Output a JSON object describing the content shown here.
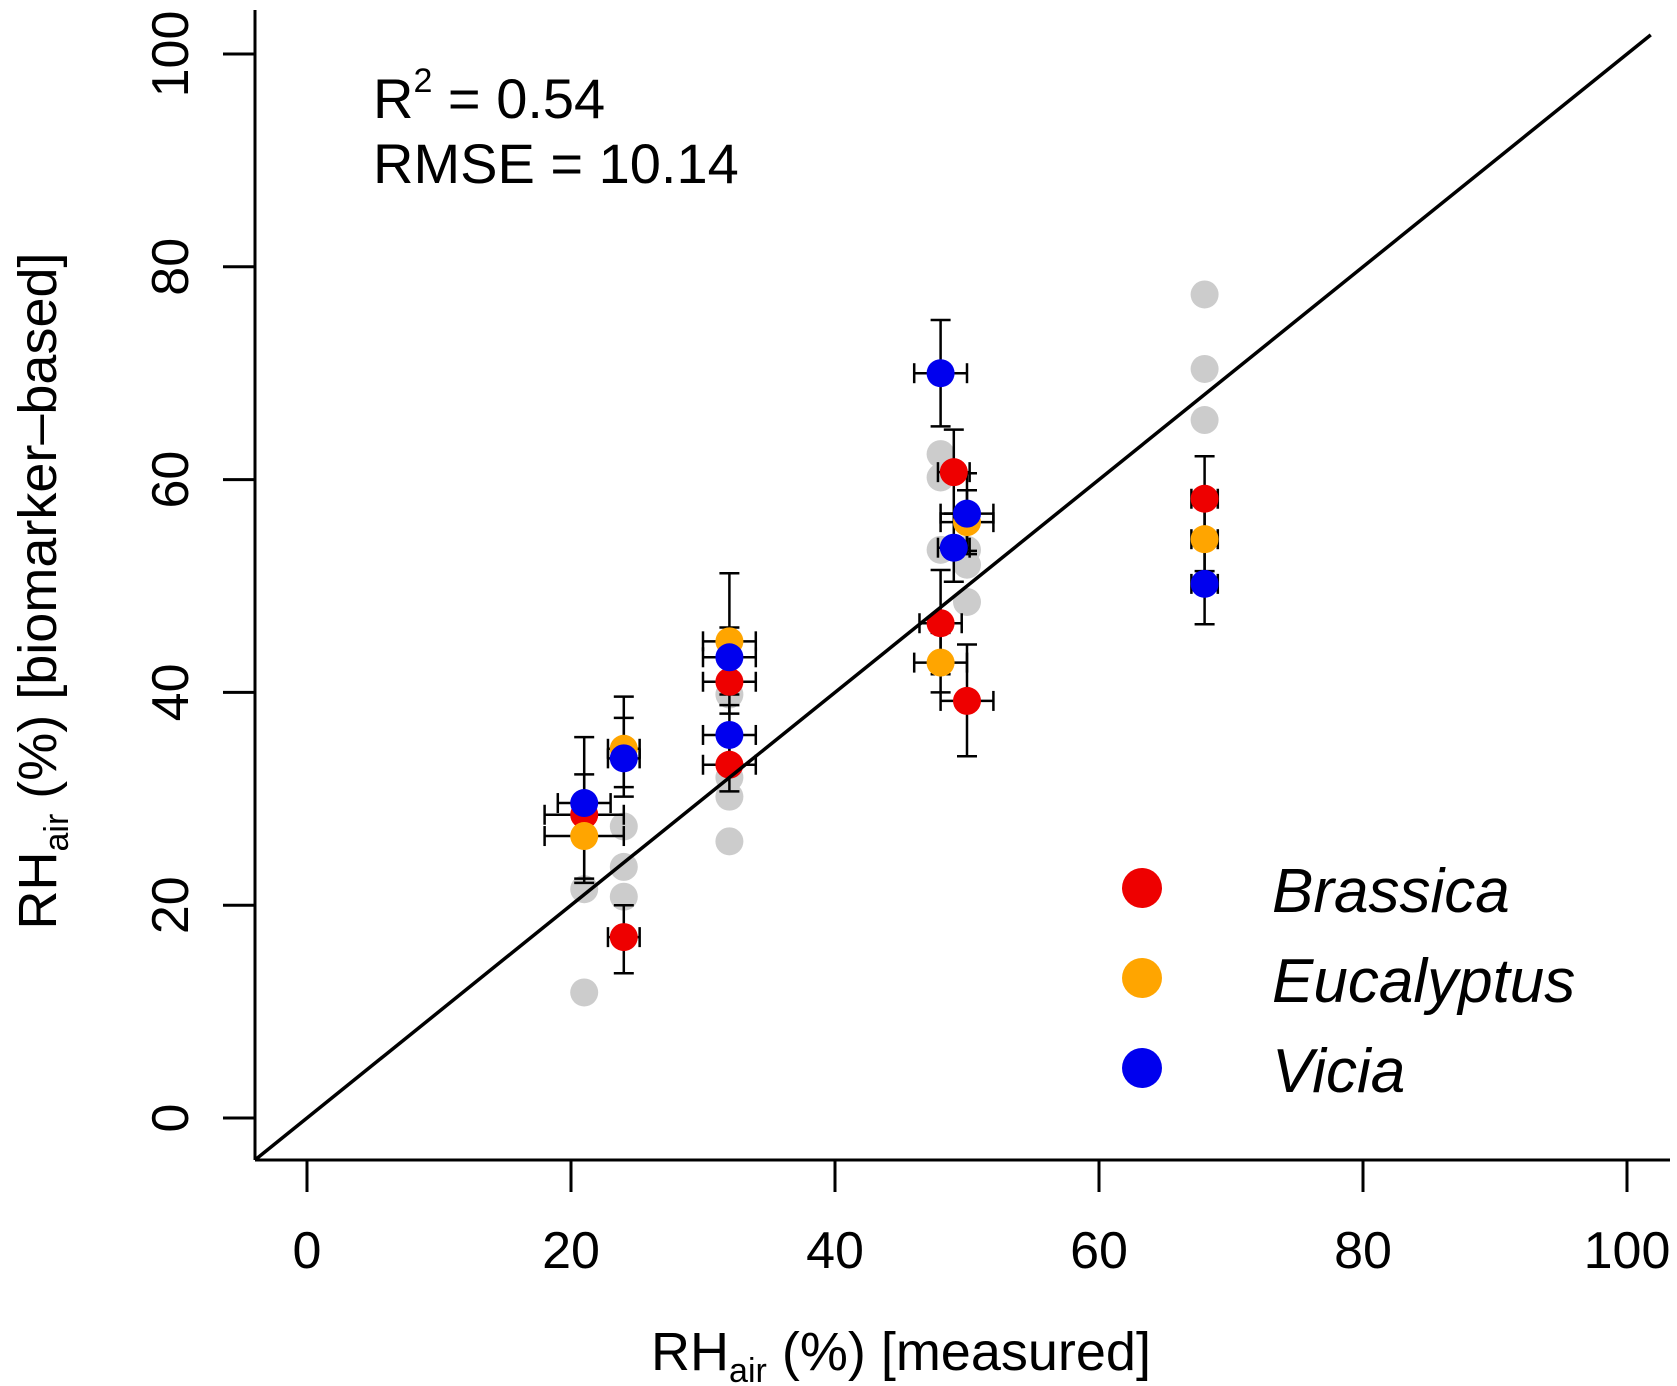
{
  "chart_data": {
    "type": "scatter",
    "xlabel_main": "RH",
    "xlabel_sub": "air",
    "xlabel_rest": " (%) [measured]",
    "ylabel_main": "RH",
    "ylabel_sub": "air",
    "ylabel_rest": " (%) [biomarker–based]",
    "xlim": [
      0,
      100
    ],
    "ylim": [
      0,
      100
    ],
    "xticks": [
      0,
      20,
      40,
      60,
      80,
      100
    ],
    "yticks": [
      0,
      20,
      40,
      60,
      80,
      100
    ],
    "xtick_labels": [
      "0",
      "20",
      "40",
      "60",
      "80",
      "100"
    ],
    "ytick_labels": [
      "0",
      "20",
      "40",
      "60",
      "80",
      "100"
    ],
    "grid": false,
    "identity_line": true,
    "annotations": {
      "r2_prefix": "R",
      "r2_sup": "2",
      "r2_value": " = 0.54",
      "rmse": "RMSE = 10.14"
    },
    "legend_position": "bottom-right",
    "colors": {
      "Brassica": "#ee0000",
      "Eucalyptus": "#ffa500",
      "Vicia": "#0000ee",
      "background_points": "#cccccc"
    },
    "background_points": [
      {
        "x": 21,
        "y": 11.8
      },
      {
        "x": 21,
        "y": 21.5
      },
      {
        "x": 24,
        "y": 20.8
      },
      {
        "x": 24,
        "y": 23.6
      },
      {
        "x": 24,
        "y": 27.4
      },
      {
        "x": 32,
        "y": 26
      },
      {
        "x": 32,
        "y": 30.2
      },
      {
        "x": 32,
        "y": 32
      },
      {
        "x": 32,
        "y": 39.8
      },
      {
        "x": 48,
        "y": 53.4
      },
      {
        "x": 48,
        "y": 60.2
      },
      {
        "x": 48,
        "y": 62.4
      },
      {
        "x": 50,
        "y": 48.5
      },
      {
        "x": 50,
        "y": 52
      },
      {
        "x": 50,
        "y": 53.4
      },
      {
        "x": 68,
        "y": 65.6
      },
      {
        "x": 68,
        "y": 70.4
      },
      {
        "x": 68,
        "y": 77.4
      }
    ],
    "series": [
      {
        "name": "Brassica",
        "points": [
          {
            "x": 21,
            "y": 28.5,
            "xerr": 3,
            "yerr_low": 6,
            "yerr_high": 3.8
          },
          {
            "x": 24,
            "y": 17,
            "xerr": 1.2,
            "yerr_low": 3.4,
            "yerr_high": 3
          },
          {
            "x": 32,
            "y": 33.2,
            "xerr": 2,
            "yerr_low": 2.5,
            "yerr_high": 3.6
          },
          {
            "x": 32,
            "y": 41,
            "xerr": 2,
            "yerr_low": 3,
            "yerr_high": 3.6
          },
          {
            "x": 48,
            "y": 46.5,
            "xerr": 1.6,
            "yerr_low": 4.8,
            "yerr_high": 5
          },
          {
            "x": 49,
            "y": 60.7,
            "xerr": 1.2,
            "yerr_low": 3.9,
            "yerr_high": 4
          },
          {
            "x": 50,
            "y": 39.2,
            "xerr": 2,
            "yerr_low": 5.2,
            "yerr_high": 5.3
          },
          {
            "x": 68,
            "y": 58.2,
            "xerr": 1,
            "yerr_low": 3.5,
            "yerr_high": 4
          }
        ]
      },
      {
        "name": "Eucalyptus",
        "points": [
          {
            "x": 21,
            "y": 26.5,
            "xerr": 3,
            "yerr_low": 4.4,
            "yerr_high": 2.2
          },
          {
            "x": 24,
            "y": 34.7,
            "xerr": 1.2,
            "yerr_low": 3.6,
            "yerr_high": 4.9
          },
          {
            "x": 32,
            "y": 44.8,
            "xerr": 2,
            "yerr_low": 5,
            "yerr_high": 6.4
          },
          {
            "x": 48,
            "y": 42.8,
            "xerr": 2,
            "yerr_low": 2.8,
            "yerr_high": 2.8
          },
          {
            "x": 50,
            "y": 56,
            "xerr": 2,
            "yerr_low": 3,
            "yerr_high": 3
          },
          {
            "x": 68,
            "y": 54.4,
            "xerr": 1,
            "yerr_low": 3,
            "yerr_high": 4
          }
        ]
      },
      {
        "name": "Vicia",
        "points": [
          {
            "x": 21,
            "y": 29.6,
            "xerr": 2,
            "yerr_low": 3,
            "yerr_high": 6.2
          },
          {
            "x": 24,
            "y": 33.8,
            "xerr": 1.2,
            "yerr_low": 3.6,
            "yerr_high": 3.8
          },
          {
            "x": 32,
            "y": 36,
            "xerr": 2,
            "yerr_low": 3.3,
            "yerr_high": 2.8
          },
          {
            "x": 32,
            "y": 43.3,
            "xerr": 2,
            "yerr_low": 2.8,
            "yerr_high": 2.8
          },
          {
            "x": 48,
            "y": 70,
            "xerr": 2,
            "yerr_low": 5,
            "yerr_high": 5
          },
          {
            "x": 49,
            "y": 53.6,
            "xerr": 1.2,
            "yerr_low": 3.2,
            "yerr_high": 3.2
          },
          {
            "x": 50,
            "y": 56.8,
            "xerr": 2,
            "yerr_low": 3.5,
            "yerr_high": 3.8
          },
          {
            "x": 68,
            "y": 50.2,
            "xerr": 1,
            "yerr_low": 3.8,
            "yerr_high": 3.8
          }
        ]
      }
    ]
  }
}
